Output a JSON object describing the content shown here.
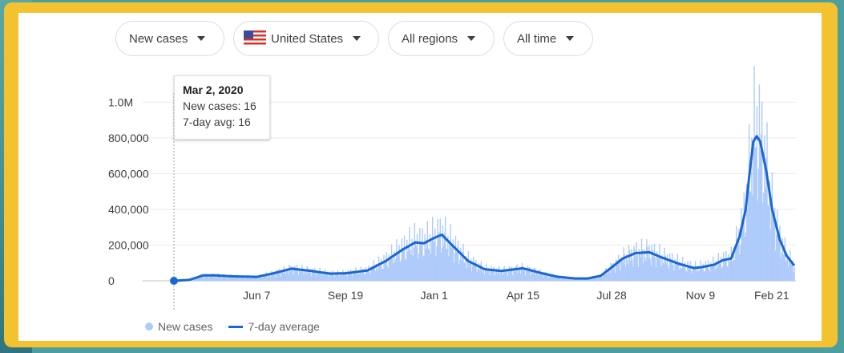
{
  "filters": {
    "metric": "New cases",
    "country": "United States",
    "region": "All regions",
    "timeframe": "All time"
  },
  "tooltip": {
    "date": "Mar 2, 2020",
    "new_cases": "New cases: 16",
    "avg": "7-day avg: 16"
  },
  "legend": {
    "bars": "New cases",
    "line": "7-day average"
  },
  "colors": {
    "bars": "#aecbfa",
    "line": "#1a66d2",
    "frame": "#f3c231"
  },
  "chart_data": {
    "type": "bar",
    "ylim": [
      0,
      1150000
    ],
    "grid": true,
    "y_ticks": [
      0,
      200000,
      400000,
      600000,
      800000,
      1000000
    ],
    "y_tick_labels": [
      "0",
      "200,000",
      "400,000",
      "600,000",
      "800,000",
      "1.0M"
    ],
    "x_ticks": [
      "2020-06-07",
      "2020-09-19",
      "2021-01-01",
      "2021-04-15",
      "2021-07-28",
      "2021-11-09",
      "2022-02-21"
    ],
    "x_tick_labels": [
      "Jun 7",
      "Sep 19",
      "Jan 1",
      "Apr 15",
      "Jul 28",
      "Nov 9",
      "Feb 21"
    ],
    "x_range": [
      "2020-03-02",
      "2022-02-27"
    ],
    "series": [
      {
        "name": "7-day average",
        "points": [
          [
            "2020-03-02",
            16
          ],
          [
            "2020-03-20",
            5000
          ],
          [
            "2020-04-05",
            30000
          ],
          [
            "2020-04-20",
            30000
          ],
          [
            "2020-05-10",
            25000
          ],
          [
            "2020-06-07",
            22000
          ],
          [
            "2020-06-25",
            40000
          ],
          [
            "2020-07-18",
            68000
          ],
          [
            "2020-08-10",
            55000
          ],
          [
            "2020-09-01",
            40000
          ],
          [
            "2020-09-19",
            42000
          ],
          [
            "2020-10-15",
            58000
          ],
          [
            "2020-11-05",
            110000
          ],
          [
            "2020-11-25",
            175000
          ],
          [
            "2020-12-10",
            215000
          ],
          [
            "2020-12-20",
            210000
          ],
          [
            "2021-01-01",
            240000
          ],
          [
            "2021-01-10",
            258000
          ],
          [
            "2021-01-25",
            185000
          ],
          [
            "2021-02-10",
            110000
          ],
          [
            "2021-03-01",
            65000
          ],
          [
            "2021-03-20",
            55000
          ],
          [
            "2021-04-15",
            70000
          ],
          [
            "2021-05-05",
            45000
          ],
          [
            "2021-05-25",
            23000
          ],
          [
            "2021-06-15",
            13000
          ],
          [
            "2021-06-30",
            13000
          ],
          [
            "2021-07-15",
            28000
          ],
          [
            "2021-07-28",
            75000
          ],
          [
            "2021-08-10",
            125000
          ],
          [
            "2021-08-25",
            155000
          ],
          [
            "2021-09-10",
            160000
          ],
          [
            "2021-09-25",
            130000
          ],
          [
            "2021-10-15",
            95000
          ],
          [
            "2021-11-01",
            72000
          ],
          [
            "2021-11-09",
            75000
          ],
          [
            "2021-11-25",
            90000
          ],
          [
            "2021-12-05",
            115000
          ],
          [
            "2021-12-15",
            125000
          ],
          [
            "2021-12-25",
            250000
          ],
          [
            "2022-01-01",
            400000
          ],
          [
            "2022-01-06",
            620000
          ],
          [
            "2022-01-10",
            780000
          ],
          [
            "2022-01-14",
            810000
          ],
          [
            "2022-01-18",
            780000
          ],
          [
            "2022-01-25",
            620000
          ],
          [
            "2022-02-01",
            400000
          ],
          [
            "2022-02-10",
            230000
          ],
          [
            "2022-02-18",
            140000
          ],
          [
            "2022-02-27",
            85000
          ]
        ]
      }
    ]
  }
}
